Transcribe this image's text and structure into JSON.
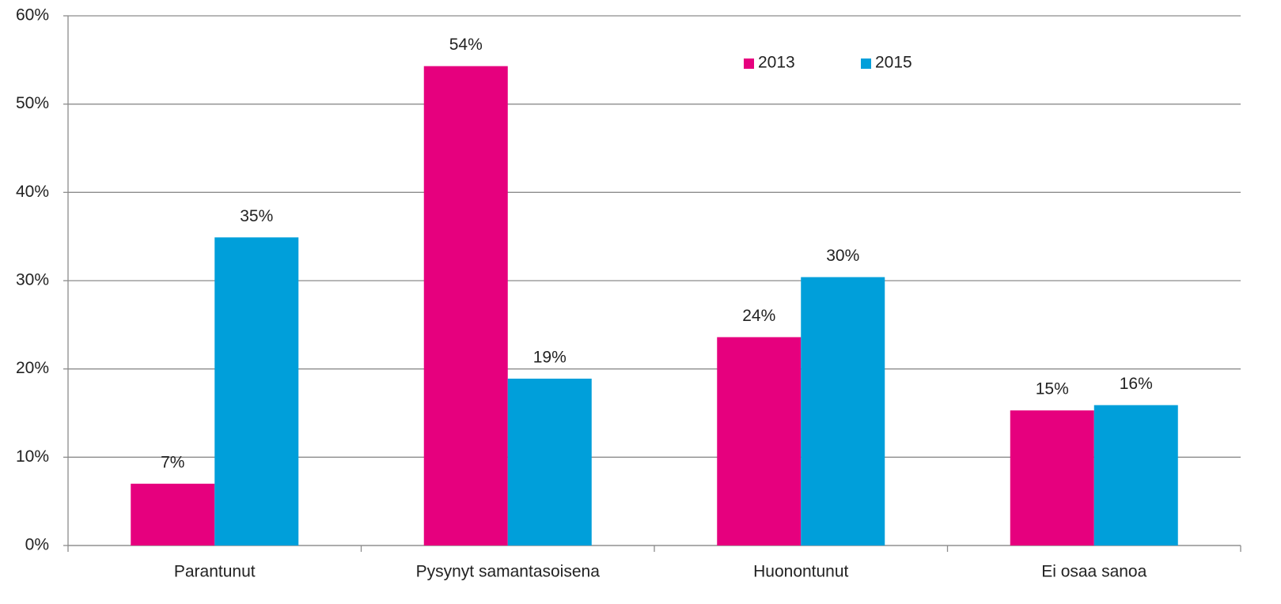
{
  "chart_data": {
    "type": "bar",
    "categories": [
      "Parantunut",
      "Pysynyt samantasoisena",
      "Huonontunut",
      "Ei osaa sanoa"
    ],
    "series": [
      {
        "name": "2013",
        "color": "#e6007e",
        "values": [
          7.0,
          54.3,
          23.6,
          15.3
        ],
        "value_labels": [
          "7%",
          "54%",
          "24%",
          "15%"
        ]
      },
      {
        "name": "2015",
        "color": "#009fda",
        "values": [
          34.9,
          18.9,
          30.4,
          15.9
        ],
        "value_labels": [
          "35%",
          "19%",
          "30%",
          "16%"
        ]
      }
    ],
    "ylim": [
      0,
      60
    ],
    "yticks": [
      {
        "value": 0,
        "label": "0%"
      },
      {
        "value": 10,
        "label": "10%"
      },
      {
        "value": 20,
        "label": "20%"
      },
      {
        "value": 30,
        "label": "30%"
      },
      {
        "value": 40,
        "label": "40%"
      },
      {
        "value": 50,
        "label": "50%"
      },
      {
        "value": 60,
        "label": "60%"
      }
    ],
    "grid": true,
    "legend_position": "upper center"
  }
}
